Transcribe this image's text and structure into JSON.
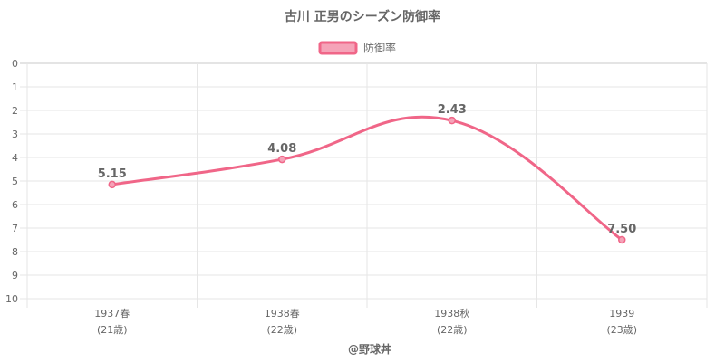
{
  "chart_data": {
    "type": "line",
    "title": "古川 正男のシーズン防御率",
    "legend": {
      "label": "防御率",
      "position": "top"
    },
    "categories": [
      {
        "season": "1937春",
        "age": "(21歳)"
      },
      {
        "season": "1938春",
        "age": "(22歳)"
      },
      {
        "season": "1938秋",
        "age": "(22歳)"
      },
      {
        "season": "1939",
        "age": "(23歳)"
      }
    ],
    "series": [
      {
        "name": "防御率",
        "values": [
          5.15,
          4.08,
          2.43,
          7.5
        ],
        "labels": [
          "5.15",
          "4.08",
          "2.43",
          "7.50"
        ]
      }
    ],
    "y_axis": {
      "min": 0,
      "max": 10,
      "step": 1,
      "reversed": true,
      "tick_labels": [
        "0",
        "1",
        "2",
        "3",
        "4",
        "5",
        "6",
        "7",
        "8",
        "9",
        "10"
      ]
    },
    "grid": true,
    "line_color": "#f06688",
    "legend_fill": "#f5a3b8"
  },
  "credit": "@野球丼"
}
